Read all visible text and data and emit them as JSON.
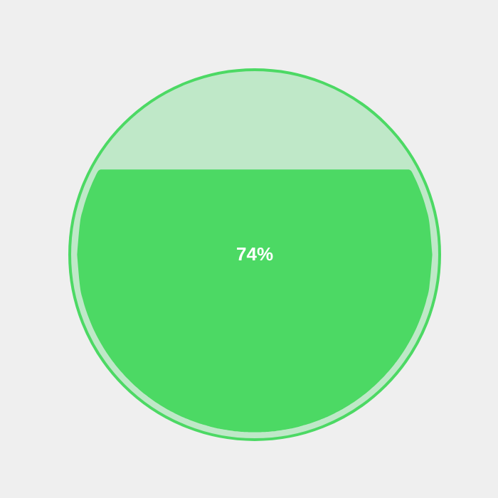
{
  "chart_data": {
    "type": "other",
    "categories": [
      null
    ],
    "values": [
      74
    ],
    "value_labels": [
      "74%"
    ],
    "colors": [
      "#4cd964"
    ]
  }
}
